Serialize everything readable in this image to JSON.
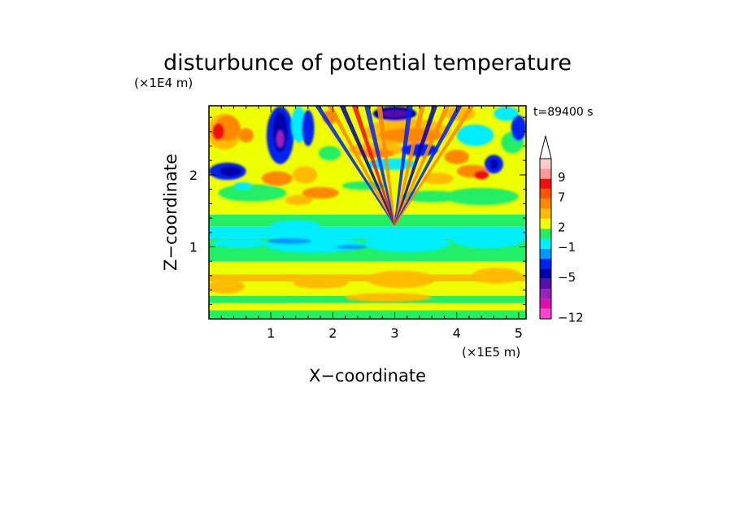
{
  "chart_data": {
    "type": "heatmap",
    "title": "disturbunce of potential temperature",
    "xlabel": "X−coordinate",
    "ylabel": "Z−coordinate",
    "x_scale_label": "(×1E5 m)",
    "y_scale_label": "(×1E4 m)",
    "time_label": "t=89400 s",
    "xlim": [
      0,
      5.12
    ],
    "ylim": [
      0,
      2.96
    ],
    "x_ticks": [
      {
        "value": 1,
        "label": "1"
      },
      {
        "value": 2,
        "label": "2"
      },
      {
        "value": 3,
        "label": "3"
      },
      {
        "value": 4,
        "label": "4"
      },
      {
        "value": 5,
        "label": "5"
      }
    ],
    "y_ticks": [
      {
        "value": 1,
        "label": "1"
      },
      {
        "value": 2,
        "label": "2"
      }
    ],
    "colorbar": {
      "levels": [
        {
          "color": "#ff44cc",
          "label": "−12"
        },
        {
          "color": "#dd11aa",
          "label": ""
        },
        {
          "color": "#9922bb",
          "label": ""
        },
        {
          "color": "#5511aa",
          "label": ""
        },
        {
          "color": "#0000aa",
          "label": "−5"
        },
        {
          "color": "#0022ee",
          "label": ""
        },
        {
          "color": "#0099ff",
          "label": ""
        },
        {
          "color": "#00eeff",
          "label": "−1"
        },
        {
          "color": "#22ee66",
          "label": ""
        },
        {
          "color": "#eeff00",
          "label": "2"
        },
        {
          "color": "#ffbb00",
          "label": ""
        },
        {
          "color": "#ff8800",
          "label": ""
        },
        {
          "color": "#ff5500",
          "label": "7"
        },
        {
          "color": "#ee1111",
          "label": ""
        },
        {
          "color": "#ff9999",
          "label": "9"
        },
        {
          "color": "#ffcccc",
          "label": ""
        }
      ]
    },
    "bands": [
      {
        "z": [
          0.0,
          0.12
        ],
        "color": "#22ee66"
      },
      {
        "z": [
          0.12,
          0.22
        ],
        "color": "#eeff00"
      },
      {
        "z": [
          0.22,
          0.32
        ],
        "color": "#22ee66"
      },
      {
        "z": [
          0.32,
          0.52
        ],
        "color": "#eeff00"
      },
      {
        "z": [
          0.52,
          0.62
        ],
        "color": "#ffbb00"
      },
      {
        "z": [
          0.62,
          0.8
        ],
        "color": "#eeff00"
      },
      {
        "z": [
          0.8,
          1.12
        ],
        "color": "#22ee66"
      },
      {
        "z": [
          1.12,
          1.28
        ],
        "color": "#00eeff"
      },
      {
        "z": [
          1.28,
          1.45
        ],
        "color": "#22ee66"
      },
      {
        "z": [
          1.45,
          2.96
        ],
        "color": "#eeff00"
      }
    ],
    "blobs": [
      {
        "x": 0.28,
        "z": 0.45,
        "rx": 0.3,
        "rz": 0.1,
        "color": "#ffbb00"
      },
      {
        "x": 1.8,
        "z": 0.5,
        "rx": 0.45,
        "rz": 0.08,
        "color": "#ffbb00"
      },
      {
        "x": 3.1,
        "z": 0.55,
        "rx": 0.55,
        "rz": 0.12,
        "color": "#ffbb00"
      },
      {
        "x": 4.65,
        "z": 0.6,
        "rx": 0.4,
        "rz": 0.11,
        "color": "#ffbb00"
      },
      {
        "x": 2.9,
        "z": 0.3,
        "rx": 0.7,
        "rz": 0.06,
        "color": "#ffbb00"
      },
      {
        "x": 0.5,
        "z": 1.05,
        "rx": 0.45,
        "rz": 0.06,
        "color": "#00eeff"
      },
      {
        "x": 1.7,
        "z": 1.03,
        "rx": 0.8,
        "rz": 0.11,
        "color": "#00eeff"
      },
      {
        "x": 3.2,
        "z": 1.05,
        "rx": 0.7,
        "rz": 0.12,
        "color": "#00eeff"
      },
      {
        "x": 4.5,
        "z": 1.12,
        "rx": 0.6,
        "rz": 0.14,
        "color": "#00eeff"
      },
      {
        "x": 1.4,
        "z": 1.3,
        "rx": 0.4,
        "rz": 0.07,
        "color": "#00eeff"
      },
      {
        "x": 1.3,
        "z": 1.08,
        "rx": 0.35,
        "rz": 0.04,
        "color": "#0099ff"
      },
      {
        "x": 2.3,
        "z": 1.0,
        "rx": 0.25,
        "rz": 0.03,
        "color": "#0099ff"
      },
      {
        "x": 0.7,
        "z": 1.75,
        "rx": 0.55,
        "rz": 0.12,
        "color": "#22ee66"
      },
      {
        "x": 4.4,
        "z": 1.7,
        "rx": 0.6,
        "rz": 0.12,
        "color": "#22ee66"
      },
      {
        "x": 0.25,
        "z": 2.6,
        "rx": 0.28,
        "rz": 0.25,
        "color": "#ffbb00"
      },
      {
        "x": 0.3,
        "z": 2.65,
        "rx": 0.2,
        "rz": 0.18,
        "color": "#ff8800"
      },
      {
        "x": 0.15,
        "z": 2.6,
        "rx": 0.1,
        "rz": 0.12,
        "color": "#ee1111"
      },
      {
        "x": 0.6,
        "z": 2.55,
        "rx": 0.12,
        "rz": 0.1,
        "color": "#ff8800"
      },
      {
        "x": 0.3,
        "z": 2.05,
        "rx": 0.3,
        "rz": 0.12,
        "color": "#0022ee"
      },
      {
        "x": 0.35,
        "z": 2.05,
        "rx": 0.18,
        "rz": 0.07,
        "color": "#0000aa"
      },
      {
        "x": 0.55,
        "z": 1.85,
        "rx": 0.15,
        "rz": 0.05,
        "color": "#00eeff"
      },
      {
        "x": 1.15,
        "z": 2.55,
        "rx": 0.22,
        "rz": 0.4,
        "color": "#0022ee"
      },
      {
        "x": 1.15,
        "z": 2.6,
        "rx": 0.12,
        "rz": 0.28,
        "color": "#0000aa"
      },
      {
        "x": 1.15,
        "z": 2.5,
        "rx": 0.06,
        "rz": 0.12,
        "color": "#9922bb"
      },
      {
        "x": 1.45,
        "z": 2.7,
        "rx": 0.12,
        "rz": 0.25,
        "color": "#00eeff"
      },
      {
        "x": 1.6,
        "z": 2.65,
        "rx": 0.1,
        "rz": 0.25,
        "color": "#0022ee"
      },
      {
        "x": 1.95,
        "z": 2.8,
        "rx": 0.12,
        "rz": 0.1,
        "color": "#ff8800"
      },
      {
        "x": 1.1,
        "z": 1.95,
        "rx": 0.25,
        "rz": 0.1,
        "color": "#ff8800"
      },
      {
        "x": 1.55,
        "z": 2.0,
        "rx": 0.2,
        "rz": 0.12,
        "color": "#ffbb00"
      },
      {
        "x": 1.8,
        "z": 1.75,
        "rx": 0.3,
        "rz": 0.08,
        "color": "#ff8800"
      },
      {
        "x": 1.45,
        "z": 1.65,
        "rx": 0.22,
        "rz": 0.07,
        "color": "#ffbb00"
      },
      {
        "x": 1.95,
        "z": 2.3,
        "rx": 0.18,
        "rz": 0.1,
        "color": "#22ee66"
      },
      {
        "x": 3.2,
        "z": 2.6,
        "rx": 0.7,
        "rz": 0.18,
        "color": "#ffbb00"
      },
      {
        "x": 3.25,
        "z": 2.55,
        "rx": 0.5,
        "rz": 0.1,
        "color": "#ff8800"
      },
      {
        "x": 3.0,
        "z": 2.85,
        "rx": 0.35,
        "rz": 0.1,
        "color": "#0000aa"
      },
      {
        "x": 3.0,
        "z": 2.85,
        "rx": 0.22,
        "rz": 0.05,
        "color": "#5511aa"
      },
      {
        "x": 2.7,
        "z": 2.35,
        "rx": 0.45,
        "rz": 0.1,
        "color": "#ffbb00"
      },
      {
        "x": 2.7,
        "z": 2.3,
        "rx": 0.3,
        "rz": 0.06,
        "color": "#ff8800"
      },
      {
        "x": 2.95,
        "z": 2.15,
        "rx": 0.4,
        "rz": 0.08,
        "color": "#00eeff"
      },
      {
        "x": 3.4,
        "z": 2.35,
        "rx": 0.3,
        "rz": 0.09,
        "color": "#0022ee"
      },
      {
        "x": 3.7,
        "z": 1.95,
        "rx": 0.25,
        "rz": 0.08,
        "color": "#ffbb00"
      },
      {
        "x": 4.0,
        "z": 2.25,
        "rx": 0.2,
        "rz": 0.1,
        "color": "#ff8800"
      },
      {
        "x": 4.25,
        "z": 2.05,
        "rx": 0.25,
        "rz": 0.09,
        "color": "#ff8800"
      },
      {
        "x": 4.4,
        "z": 2.0,
        "rx": 0.12,
        "rz": 0.06,
        "color": "#ee1111"
      },
      {
        "x": 4.6,
        "z": 2.15,
        "rx": 0.15,
        "rz": 0.13,
        "color": "#0022ee"
      },
      {
        "x": 4.6,
        "z": 2.15,
        "rx": 0.07,
        "rz": 0.07,
        "color": "#0000aa"
      },
      {
        "x": 4.3,
        "z": 2.55,
        "rx": 0.3,
        "rz": 0.15,
        "color": "#00eeff"
      },
      {
        "x": 4.9,
        "z": 2.45,
        "rx": 0.18,
        "rz": 0.15,
        "color": "#22ee66"
      },
      {
        "x": 4.05,
        "z": 2.85,
        "rx": 0.25,
        "rz": 0.1,
        "color": "#ffbb00"
      },
      {
        "x": 4.8,
        "z": 2.85,
        "rx": 0.2,
        "rz": 0.1,
        "color": "#00eeff"
      },
      {
        "x": 5.0,
        "z": 2.65,
        "rx": 0.12,
        "rz": 0.18,
        "color": "#0022ee"
      },
      {
        "x": 3.6,
        "z": 1.7,
        "rx": 0.5,
        "rz": 0.08,
        "color": "#22ee66"
      },
      {
        "x": 2.5,
        "z": 1.85,
        "rx": 0.35,
        "rz": 0.06,
        "color": "#22ee66"
      }
    ],
    "ray_fan": {
      "origin": {
        "x": 3.0,
        "z": 1.3
      },
      "top_z": 2.96,
      "ray_x": [
        1.75,
        1.95,
        2.15,
        2.35,
        2.55,
        2.75,
        3.25,
        3.45,
        3.65,
        3.85,
        4.05,
        4.25
      ],
      "colors": [
        "#0022ee",
        "#ff8800",
        "#0000aa",
        "#ee1111",
        "#0022ee",
        "#ff8800",
        "#0022ee",
        "#ff8800",
        "#0000aa",
        "#ff8800",
        "#0022ee",
        "#ff8800"
      ]
    }
  }
}
